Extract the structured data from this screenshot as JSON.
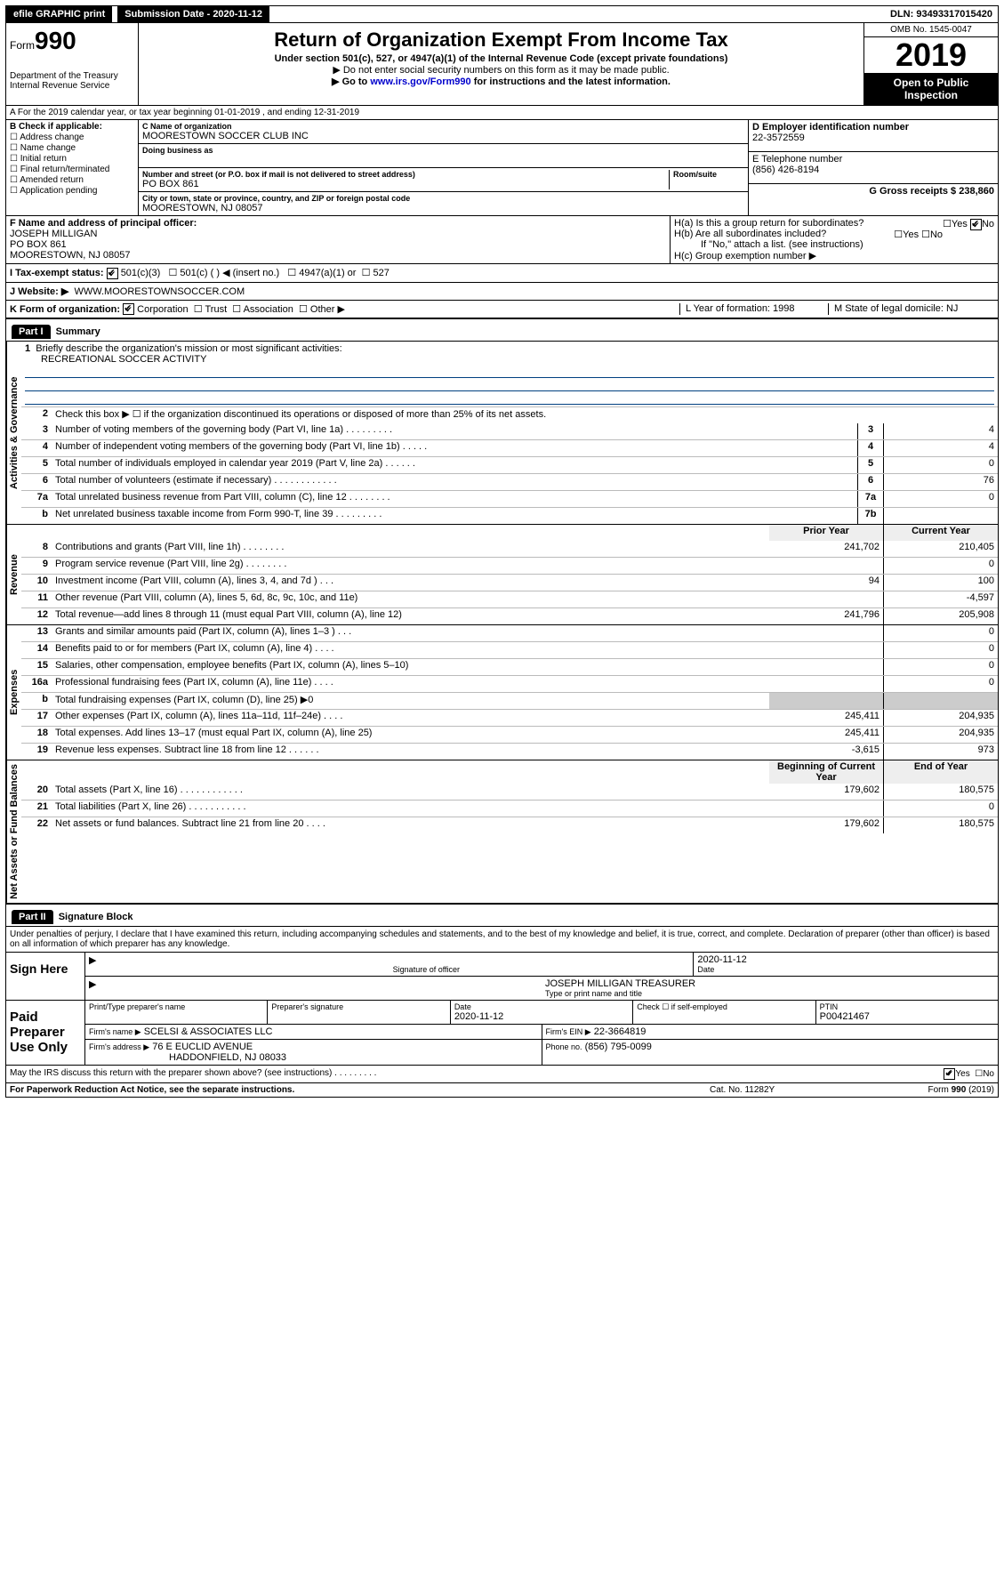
{
  "top": {
    "efile": "efile GRAPHIC print",
    "submission": "Submission Date - 2020-11-12",
    "dln": "DLN: 93493317015420"
  },
  "header": {
    "form_small": "Form",
    "form_num": "990",
    "dept": "Department of the Treasury\nInternal Revenue Service",
    "title": "Return of Organization Exempt From Income Tax",
    "subtitle": "Under section 501(c), 527, or 4947(a)(1) of the Internal Revenue Code (except private foundations)",
    "note1": "▶ Do not enter social security numbers on this form as it may be made public.",
    "note2_pre": "▶ Go to ",
    "note2_link": "www.irs.gov/Form990",
    "note2_post": " for instructions and the latest information.",
    "omb": "OMB No. 1545-0047",
    "year": "2019",
    "open": "Open to Public Inspection"
  },
  "rowA": "A For the 2019 calendar year, or tax year beginning 01-01-2019   , and ending 12-31-2019",
  "colB": {
    "head": "B Check if applicable:",
    "items": [
      "Address change",
      "Name change",
      "Initial return",
      "Final return/terminated",
      "Amended return",
      "Application pending"
    ]
  },
  "colC": {
    "name_label": "C Name of organization",
    "name": "MOORESTOWN SOCCER CLUB INC",
    "dba_label": "Doing business as",
    "addr_label": "Number and street (or P.O. box if mail is not delivered to street address)",
    "room_label": "Room/suite",
    "addr": "PO BOX 861",
    "city_label": "City or town, state or province, country, and ZIP or foreign postal code",
    "city": "MOORESTOWN, NJ  08057"
  },
  "colD": {
    "d_label": "D Employer identification number",
    "d_val": "22-3572559",
    "e_label": "E Telephone number",
    "e_val": "(856) 426-8194",
    "g_label": "G Gross receipts $ 238,860"
  },
  "colF": {
    "label": "F  Name and address of principal officer:",
    "name": "JOSEPH MILLIGAN",
    "addr1": "PO BOX 861",
    "addr2": "MOORESTOWN, NJ  08057"
  },
  "colH": {
    "ha": "H(a)  Is this a group return for subordinates?",
    "hb": "H(b)  Are all subordinates included?",
    "hb_note": "If \"No,\" attach a list. (see instructions)",
    "hc": "H(c)  Group exemption number ▶"
  },
  "rowI": {
    "label": "I     Tax-exempt status:",
    "opts": [
      "501(c)(3)",
      "501(c) (  ) ◀ (insert no.)",
      "4947(a)(1) or",
      "527"
    ]
  },
  "rowJ": {
    "label": "J    Website: ▶",
    "val": "WWW.MOORESTOWNSOCCER.COM"
  },
  "rowK": {
    "label": "K Form of organization:",
    "opts": [
      "Corporation",
      "Trust",
      "Association",
      "Other ▶"
    ],
    "l_label": "L Year of formation: 1998",
    "m_label": "M State of legal domicile: NJ"
  },
  "part1": {
    "head": "Part I",
    "title": "Summary",
    "q1": "Briefly describe the organization's mission or most significant activities:",
    "q1v": "RECREATIONAL SOCCER ACTIVITY",
    "q2": "Check this box ▶ ☐  if the organization discontinued its operations or disposed of more than 25% of its net assets.",
    "rows_gov": [
      {
        "n": "3",
        "d": "Number of voting members of the governing body (Part VI, line 1a)  .     .     .     .     .     .     .     .     .",
        "b": "3",
        "v": "4"
      },
      {
        "n": "4",
        "d": "Number of independent voting members of the governing body (Part VI, line 1b)   .     .     .     .     .",
        "b": "4",
        "v": "4"
      },
      {
        "n": "5",
        "d": "Total number of individuals employed in calendar year 2019 (Part V, line 2a)   .     .     .     .     .     .",
        "b": "5",
        "v": "0"
      },
      {
        "n": "6",
        "d": "Total number of volunteers (estimate if necessary)   .     .     .     .     .     .     .     .     .     .     .     .",
        "b": "6",
        "v": "76"
      },
      {
        "n": "7a",
        "d": "Total unrelated business revenue from Part VIII, column (C), line 12   .     .     .     .     .     .     .     .",
        "b": "7a",
        "v": "0"
      },
      {
        "n": "b",
        "d": "Net unrelated business taxable income from Form 990-T, line 39   .     .     .     .     .     .     .     .     .",
        "b": "7b",
        "v": ""
      }
    ],
    "colhead_prior": "Prior Year",
    "colhead_curr": "Current Year",
    "rows_rev": [
      {
        "n": "8",
        "d": "Contributions and grants (Part VIII, line 1h)   .     .     .     .     .     .     .     .",
        "p": "241,702",
        "c": "210,405"
      },
      {
        "n": "9",
        "d": "Program service revenue (Part VIII, line 2g)   .     .     .     .     .     .     .     .",
        "p": "",
        "c": "0"
      },
      {
        "n": "10",
        "d": "Investment income (Part VIII, column (A), lines 3, 4, and 7d )   .     .     .",
        "p": "94",
        "c": "100"
      },
      {
        "n": "11",
        "d": "Other revenue (Part VIII, column (A), lines 5, 6d, 8c, 9c, 10c, and 11e)",
        "p": "",
        "c": "-4,597"
      },
      {
        "n": "12",
        "d": "Total revenue—add lines 8 through 11 (must equal Part VIII, column (A), line 12)",
        "p": "241,796",
        "c": "205,908"
      }
    ],
    "rows_exp": [
      {
        "n": "13",
        "d": "Grants and similar amounts paid (Part IX, column (A), lines 1–3 )   .     .     .",
        "p": "",
        "c": "0"
      },
      {
        "n": "14",
        "d": "Benefits paid to or for members (Part IX, column (A), line 4)   .     .     .     .",
        "p": "",
        "c": "0"
      },
      {
        "n": "15",
        "d": "Salaries, other compensation, employee benefits (Part IX, column (A), lines 5–10)",
        "p": "",
        "c": "0"
      },
      {
        "n": "16a",
        "d": "Professional fundraising fees (Part IX, column (A), line 11e)   .     .     .     .",
        "p": "",
        "c": "0"
      },
      {
        "n": "b",
        "d": "Total fundraising expenses (Part IX, column (D), line 25) ▶0",
        "p": "—shade—",
        "c": "—shade—"
      },
      {
        "n": "17",
        "d": "Other expenses (Part IX, column (A), lines 11a–11d, 11f–24e)   .     .     .     .",
        "p": "245,411",
        "c": "204,935"
      },
      {
        "n": "18",
        "d": "Total expenses. Add lines 13–17 (must equal Part IX, column (A), line 25)",
        "p": "245,411",
        "c": "204,935"
      },
      {
        "n": "19",
        "d": "Revenue less expenses. Subtract line 18 from line 12   .     .     .     .     .     .",
        "p": "-3,615",
        "c": "973"
      }
    ],
    "colhead_beg": "Beginning of Current Year",
    "colhead_end": "End of Year",
    "rows_net": [
      {
        "n": "20",
        "d": "Total assets (Part X, line 16)   .     .     .     .     .     .     .     .     .     .     .     .",
        "p": "179,602",
        "c": "180,575"
      },
      {
        "n": "21",
        "d": "Total liabilities (Part X, line 26)   .     .     .     .     .     .     .     .     .     .     .",
        "p": "",
        "c": "0"
      },
      {
        "n": "22",
        "d": "Net assets or fund balances. Subtract line 21 from line 20   .     .     .     .",
        "p": "179,602",
        "c": "180,575"
      }
    ]
  },
  "part2": {
    "head": "Part II",
    "title": "Signature Block",
    "decl": "Under penalties of perjury, I declare that I have examined this return, including accompanying schedules and statements, and to the best of my knowledge and belief, it is true, correct, and complete. Declaration of preparer (other than officer) is based on all information of which preparer has any knowledge."
  },
  "sign": {
    "here": "Sign Here",
    "sig_label": "Signature of officer",
    "date": "2020-11-12",
    "date_label": "Date",
    "name": "JOSEPH MILLIGAN  TREASURER",
    "name_label": "Type or print name and title"
  },
  "paid": {
    "label": "Paid Preparer Use Only",
    "h1": "Print/Type preparer's name",
    "h2": "Preparer's signature",
    "h3": "Date",
    "h3v": "2020-11-12",
    "h4": "Check ☐ if self-employed",
    "h5": "PTIN",
    "h5v": "P00421467",
    "firm_name_l": "Firm's name     ▶",
    "firm_name": "SCELSI & ASSOCIATES LLC",
    "firm_ein_l": "Firm's EIN ▶",
    "firm_ein": "22-3664819",
    "firm_addr_l": "Firm's address ▶",
    "firm_addr1": "76 E EUCLID AVENUE",
    "firm_addr2": "HADDONFIELD, NJ  08033",
    "phone_l": "Phone no.",
    "phone": "(856) 795-0099",
    "discuss": "May the IRS discuss this return with the preparer shown above? (see instructions)   .     .     .     .     .     .     .     .     ."
  },
  "footer": {
    "l": "For Paperwork Reduction Act Notice, see the separate instructions.",
    "m": "Cat. No. 11282Y",
    "r": "Form 990 (2019)"
  },
  "vtabs": {
    "gov": "Activities & Governance",
    "rev": "Revenue",
    "exp": "Expenses",
    "net": "Net Assets or Fund Balances"
  }
}
